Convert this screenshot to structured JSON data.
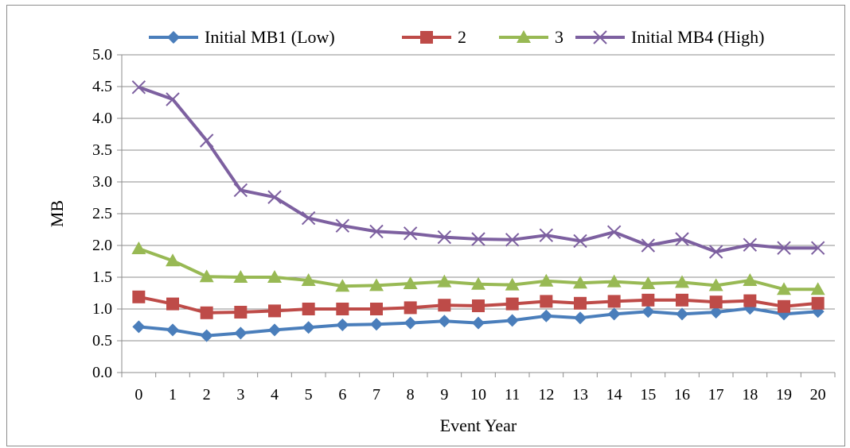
{
  "chart_data": {
    "type": "line",
    "title": "",
    "xlabel": "Event Year",
    "ylabel": "MB",
    "ylim": [
      0,
      5
    ],
    "yticks": [
      "0.0",
      "0.5",
      "1.0",
      "1.5",
      "2.0",
      "2.5",
      "3.0",
      "3.5",
      "4.0",
      "4.5",
      "5.0"
    ],
    "x": [
      0,
      1,
      2,
      3,
      4,
      5,
      6,
      7,
      8,
      9,
      10,
      11,
      12,
      13,
      14,
      15,
      16,
      17,
      18,
      19,
      20
    ],
    "grid": true,
    "legend_position": "top",
    "series": [
      {
        "name": "Initial MB1 (Low)",
        "color": "#4a7ebb",
        "marker": "diamond",
        "values": [
          0.72,
          0.67,
          0.58,
          0.62,
          0.67,
          0.71,
          0.75,
          0.76,
          0.78,
          0.81,
          0.78,
          0.82,
          0.89,
          0.86,
          0.92,
          0.96,
          0.92,
          0.95,
          1.01,
          0.92,
          0.96
        ]
      },
      {
        "name": "2",
        "color": "#be4b48",
        "marker": "square",
        "values": [
          1.19,
          1.08,
          0.94,
          0.95,
          0.97,
          1.0,
          1.0,
          1.0,
          1.02,
          1.06,
          1.05,
          1.08,
          1.12,
          1.09,
          1.12,
          1.14,
          1.14,
          1.11,
          1.13,
          1.04,
          1.09
        ]
      },
      {
        "name": "3",
        "color": "#98b954",
        "marker": "triangle",
        "values": [
          1.95,
          1.76,
          1.51,
          1.5,
          1.5,
          1.45,
          1.36,
          1.37,
          1.4,
          1.43,
          1.39,
          1.38,
          1.44,
          1.41,
          1.43,
          1.4,
          1.42,
          1.37,
          1.45,
          1.31,
          1.31
        ]
      },
      {
        "name": "Initial MB4 (High)",
        "color": "#7d60a0",
        "marker": "x",
        "values": [
          4.49,
          4.3,
          3.65,
          2.87,
          2.76,
          2.43,
          2.31,
          2.22,
          2.19,
          2.13,
          2.1,
          2.09,
          2.16,
          2.07,
          2.21,
          2.0,
          2.1,
          1.9,
          2.01,
          1.96,
          1.96
        ]
      }
    ]
  }
}
